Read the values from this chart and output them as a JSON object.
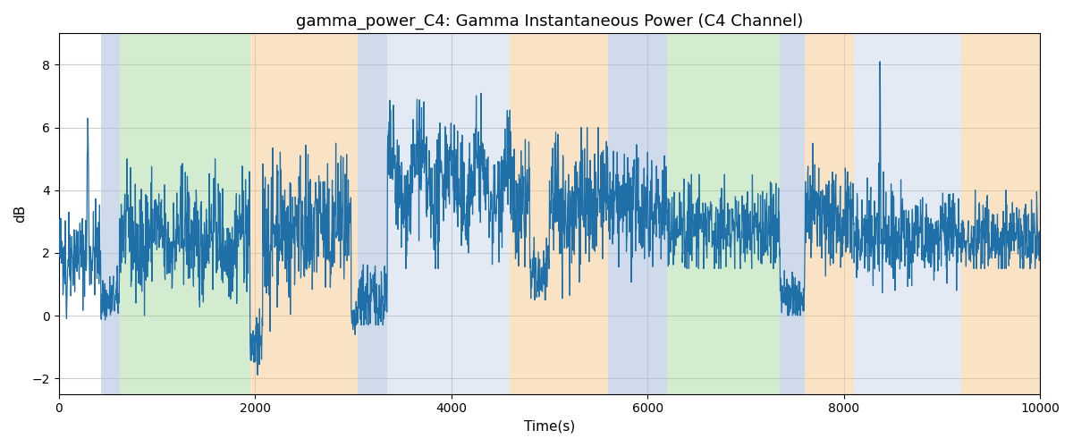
{
  "title": "gamma_power_C4: Gamma Instantaneous Power (C4 Channel)",
  "xlabel": "Time(s)",
  "ylabel": "dB",
  "xlim": [
    0,
    10000
  ],
  "ylim": [
    -2.5,
    9.0
  ],
  "yticks": [
    -2,
    0,
    2,
    4,
    6,
    8
  ],
  "seed": 42,
  "line_color": "#1f6fa8",
  "line_width": 0.9,
  "n_points": 3000,
  "background_bands": [
    {
      "xmin": 430,
      "xmax": 620,
      "color": "#b0c4de",
      "alpha": 0.6
    },
    {
      "xmin": 620,
      "xmax": 1950,
      "color": "#a8d8a0",
      "alpha": 0.5
    },
    {
      "xmin": 1950,
      "xmax": 3050,
      "color": "#f5c98a",
      "alpha": 0.5
    },
    {
      "xmin": 3050,
      "xmax": 3350,
      "color": "#b0c4de",
      "alpha": 0.6
    },
    {
      "xmin": 3350,
      "xmax": 3800,
      "color": "#b0c4de",
      "alpha": 0.35
    },
    {
      "xmin": 3800,
      "xmax": 4600,
      "color": "#b0c4de",
      "alpha": 0.35
    },
    {
      "xmin": 4600,
      "xmax": 5000,
      "color": "#f5c98a",
      "alpha": 0.5
    },
    {
      "xmin": 5000,
      "xmax": 5600,
      "color": "#f5c98a",
      "alpha": 0.5
    },
    {
      "xmin": 5600,
      "xmax": 5870,
      "color": "#b0c4de",
      "alpha": 0.6
    },
    {
      "xmin": 5870,
      "xmax": 6200,
      "color": "#b0c4de",
      "alpha": 0.6
    },
    {
      "xmin": 6200,
      "xmax": 7350,
      "color": "#a8d8a0",
      "alpha": 0.5
    },
    {
      "xmin": 7350,
      "xmax": 7600,
      "color": "#b0c4de",
      "alpha": 0.6
    },
    {
      "xmin": 7600,
      "xmax": 8100,
      "color": "#f5c98a",
      "alpha": 0.5
    },
    {
      "xmin": 8100,
      "xmax": 8400,
      "color": "#b0c4de",
      "alpha": 0.35
    },
    {
      "xmin": 8400,
      "xmax": 9200,
      "color": "#b0c4de",
      "alpha": 0.35
    },
    {
      "xmin": 9200,
      "xmax": 10000,
      "color": "#f5c98a",
      "alpha": 0.5
    }
  ],
  "title_fontsize": 13,
  "label_fontsize": 11,
  "tick_fontsize": 10,
  "grid_color": "#aaaaaa",
  "grid_alpha": 0.6,
  "fig_facecolor": "#ffffff"
}
